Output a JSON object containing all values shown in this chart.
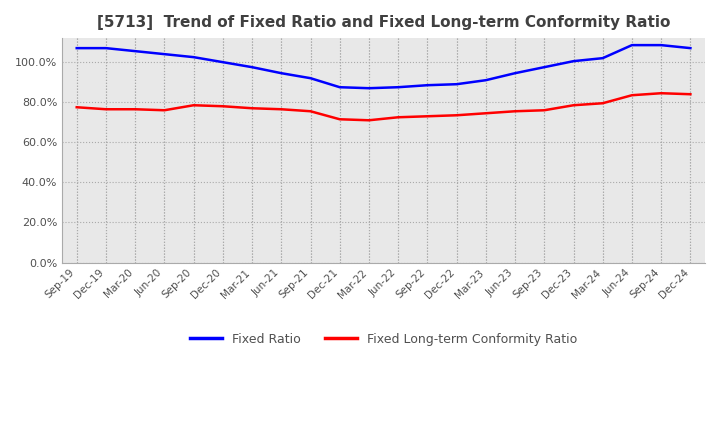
{
  "title": "[5713]  Trend of Fixed Ratio and Fixed Long-term Conformity Ratio",
  "x_labels": [
    "Sep-19",
    "Dec-19",
    "Mar-20",
    "Jun-20",
    "Sep-20",
    "Dec-20",
    "Mar-21",
    "Jun-21",
    "Sep-21",
    "Dec-21",
    "Mar-22",
    "Jun-22",
    "Sep-22",
    "Dec-22",
    "Mar-23",
    "Jun-23",
    "Sep-23",
    "Dec-23",
    "Mar-24",
    "Jun-24",
    "Sep-24",
    "Dec-24"
  ],
  "fixed_ratio": [
    107.0,
    107.0,
    105.5,
    104.0,
    102.5,
    100.0,
    97.5,
    94.5,
    92.0,
    87.5,
    87.0,
    87.5,
    88.5,
    89.0,
    91.0,
    94.5,
    97.5,
    100.5,
    102.0,
    108.5,
    108.5,
    107.0
  ],
  "fixed_lt_ratio": [
    77.5,
    76.5,
    76.5,
    76.0,
    78.5,
    78.0,
    77.0,
    76.5,
    75.5,
    71.5,
    71.0,
    72.5,
    73.0,
    73.5,
    74.5,
    75.5,
    76.0,
    78.5,
    79.5,
    83.5,
    84.5,
    84.0
  ],
  "fixed_ratio_color": "#0000FF",
  "fixed_lt_ratio_color": "#FF0000",
  "ylim": [
    0,
    112
  ],
  "yticks": [
    0,
    20,
    40,
    60,
    80,
    100
  ],
  "plot_bg_color": "#E8E8E8",
  "background_color": "#FFFFFF",
  "grid_color": "#AAAAAA",
  "title_color": "#404040",
  "legend_fixed_ratio": "Fixed Ratio",
  "legend_fixed_lt_ratio": "Fixed Long-term Conformity Ratio"
}
